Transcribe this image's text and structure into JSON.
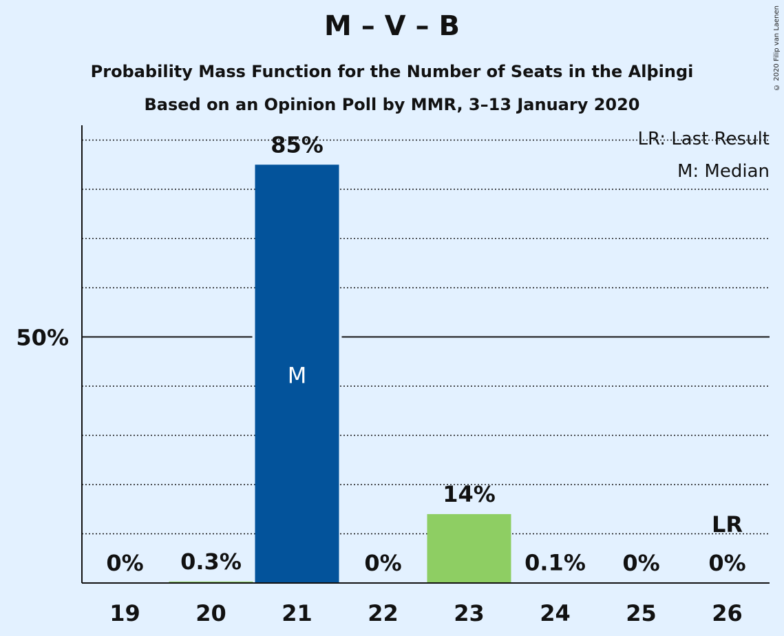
{
  "header": {
    "title": "M – V – B",
    "subtitle1": "Probability Mass Function for the Number of Seats in the Alþingi",
    "subtitle2": "Based on an Opinion Poll by MMR, 3–13 January 2020",
    "copyright": "© 2020 Filip van Laenen"
  },
  "legend": {
    "last_result": "LR: Last Result",
    "median": "M: Median"
  },
  "colors": {
    "background": "#e3f1ff",
    "median_bar": "#03539b",
    "bar": "#8ece63",
    "axis": "#111111",
    "text": "#111111",
    "median_label": "#ffffff"
  },
  "chart_data": {
    "type": "bar",
    "categories": [
      "19",
      "20",
      "21",
      "22",
      "23",
      "24",
      "25",
      "26"
    ],
    "values": [
      0,
      0.3,
      85,
      0,
      14,
      0.1,
      0,
      0
    ],
    "value_labels": [
      "0%",
      "0.3%",
      "85%",
      "0%",
      "14%",
      "0.1%",
      "0%",
      "0%"
    ],
    "ylim": [
      0,
      100
    ],
    "y_major_tick": 50,
    "y_major_tick_label": "50%",
    "y_minor_ticks": [
      10,
      20,
      30,
      40,
      60,
      70,
      80,
      90
    ],
    "grid": true,
    "median_category": "21",
    "median_marker": "M",
    "last_result_category": "26",
    "last_result_marker": "LR"
  }
}
